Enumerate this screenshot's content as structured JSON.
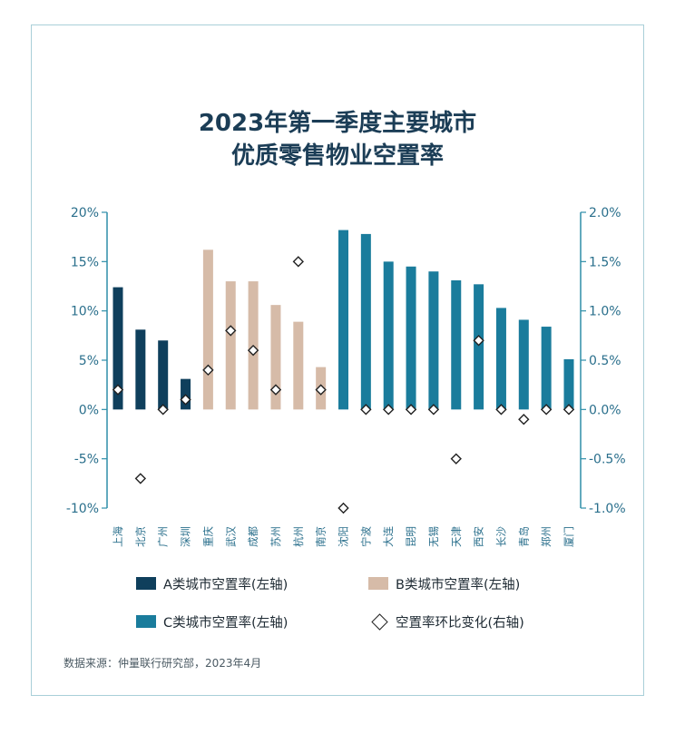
{
  "title_line1": "2023年第一季度主要城市",
  "title_line2": "优质零售物业空置率",
  "source": "数据来源：仲量联行研究部，2023年4月",
  "colors": {
    "a_class": "#0f3f5c",
    "b_class": "#d6bba8",
    "c_class": "#1a7c9c",
    "axis": "#2f8ea9",
    "tick_text": "#2a6f8c",
    "frame": "#a9cfd8"
  },
  "legend": [
    {
      "label": "A类城市空置率(左轴)",
      "marker": "bar",
      "color": "#0f3f5c"
    },
    {
      "label": "B类城市空置率(左轴)",
      "marker": "bar",
      "color": "#d6bba8"
    },
    {
      "label": "C类城市空置率(左轴)",
      "marker": "bar",
      "color": "#1a7c9c"
    },
    {
      "label": "空置率环比变化(右轴)",
      "marker": "diamond",
      "color": "#222222"
    }
  ],
  "chart_data": {
    "type": "bar",
    "categories": [
      "上海",
      "北京",
      "广州",
      "深圳",
      "重庆",
      "武汉",
      "成都",
      "苏州",
      "杭州",
      "南京",
      "沈阳",
      "宁波",
      "大连",
      "昆明",
      "无锡",
      "天津",
      "西安",
      "长沙",
      "青岛",
      "郑州",
      "厦门"
    ],
    "city_class": [
      "A",
      "A",
      "A",
      "A",
      "B",
      "B",
      "B",
      "B",
      "B",
      "B",
      "C",
      "C",
      "C",
      "C",
      "C",
      "C",
      "C",
      "C",
      "C",
      "C",
      "C"
    ],
    "series": [
      {
        "name": "空置率(左轴)",
        "axis": "left",
        "marker": "bar",
        "values": [
          12.4,
          8.1,
          7.0,
          3.1,
          16.2,
          13.0,
          13.0,
          10.6,
          8.9,
          4.3,
          18.2,
          17.8,
          15.0,
          14.5,
          14.0,
          13.1,
          12.7,
          10.3,
          9.1,
          8.4,
          5.1
        ]
      },
      {
        "name": "空置率环比变化(右轴)",
        "axis": "right",
        "marker": "diamond",
        "values": [
          0.2,
          -0.7,
          0.0,
          0.1,
          0.4,
          0.8,
          0.6,
          0.2,
          1.5,
          0.2,
          -1.0,
          0.0,
          0.0,
          0.0,
          0.0,
          -0.5,
          0.7,
          0.0,
          -0.1,
          0.0,
          0.0
        ]
      }
    ],
    "ylim_left": [
      -10,
      20
    ],
    "yticks_left": [
      "20%",
      "15%",
      "10%",
      "5%",
      "0%",
      "-5%",
      "-10%"
    ],
    "ylim_right": [
      -1.0,
      2.0
    ],
    "yticks_right": [
      "2.0%",
      "1.5%",
      "1.0%",
      "0.5%",
      "0.0%",
      "-0.5%",
      "-1.0%"
    ],
    "grid": false,
    "legend_position": "bottom"
  }
}
